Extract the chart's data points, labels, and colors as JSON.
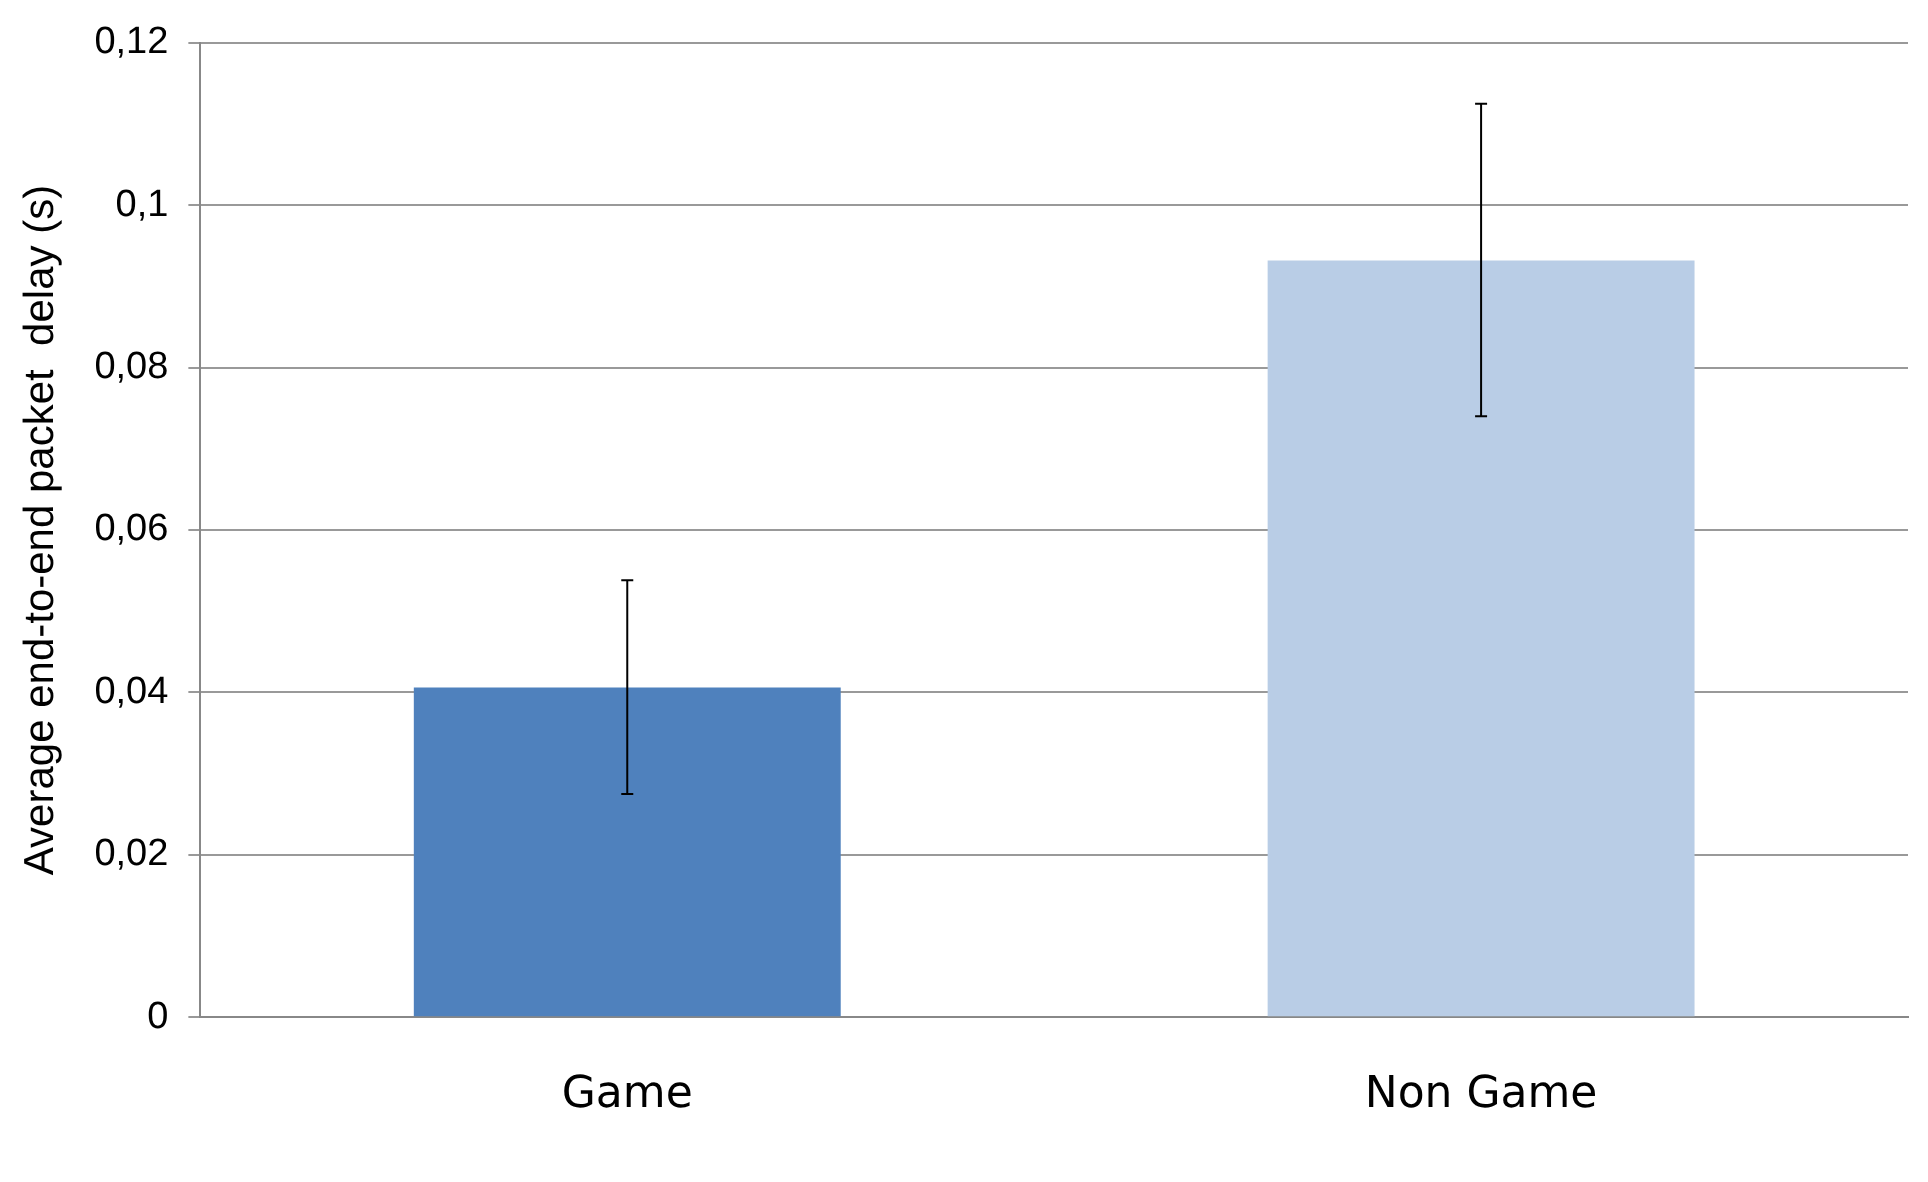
{
  "chart_data": {
    "type": "bar",
    "ylabel": "Average end-to-end packet  delay (s)",
    "categories": [
      "Game",
      "Non Game"
    ],
    "values": [
      0.0406,
      0.0932
    ],
    "colors": [
      "#4f81bd",
      "#b9cde6"
    ],
    "errors": [
      [
        0.0275,
        0.0538
      ],
      [
        0.074,
        0.1125
      ]
    ],
    "ylim": [
      0,
      0.12
    ],
    "yticks": [
      0,
      {
        "value": 0.02,
        "label": "0,02"
      },
      {
        "value": 0.04,
        "label": "0,04"
      },
      {
        "value": 0.06,
        "label": "0,06"
      },
      {
        "value": 0.08,
        "label": "0,08"
      },
      {
        "value": 0.1,
        "label": "0,1"
      },
      {
        "value": 0.12,
        "label": "0,12"
      }
    ],
    "grid": "y",
    "legend": false
  }
}
